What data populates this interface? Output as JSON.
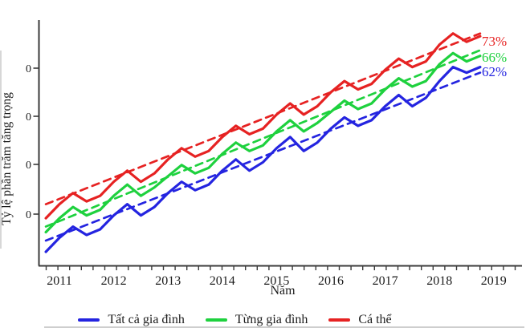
{
  "figure": {
    "title": "",
    "x_axis_title": "Năm",
    "y_axis_title": "Tỷ lệ phần trăm tăng trọng"
  },
  "legend": [
    {
      "label": "Tất cả gia đình",
      "color": "#2424e0"
    },
    {
      "label": "Từng gia đình",
      "color": "#1ed13e"
    },
    {
      "label": "Cá thể",
      "color": "#e62222"
    }
  ],
  "chart_data": {
    "type": "line",
    "title": "",
    "xlabel": "Năm",
    "ylabel": "Tỷ lệ phần trăm tăng trọng",
    "grid": false,
    "legend_position": "bottom",
    "x_start_year": 2010.75,
    "x_step_years": 0.25,
    "x_tick_labels": [
      "2011",
      "2012",
      "2013",
      "2014",
      "2015",
      "2016",
      "2017",
      "2018",
      "2019"
    ],
    "y_tick_labels": [
      "0",
      "0",
      "0",
      "0"
    ],
    "ylim": [
      -10,
      80
    ],
    "y_unit": "percent",
    "end_labels": [
      {
        "text": "73%",
        "series": "Cá thể",
        "color": "#e62222"
      },
      {
        "text": "66%",
        "series": "Từng gia đình",
        "color": "#1ed13e"
      },
      {
        "text": "62%",
        "series": "Tất cả gia đình",
        "color": "#2424e0"
      }
    ],
    "series": [
      {
        "name": "Tất cả gia đình",
        "color": "#2424e0",
        "style": "solid",
        "end_label": "62%",
        "values": [
          -4,
          1,
          5,
          2,
          4,
          9,
          13,
          9,
          12,
          17,
          21,
          18,
          20,
          25,
          29,
          25,
          28,
          33,
          37,
          32,
          35,
          40,
          44,
          41,
          43,
          48,
          52,
          48,
          51,
          57,
          62,
          60,
          62
        ]
      },
      {
        "name": "Từng gia đình",
        "color": "#1ed13e",
        "style": "solid",
        "end_label": "66%",
        "values": [
          3,
          8,
          12,
          9,
          11,
          16,
          20,
          16,
          19,
          23,
          27,
          24,
          26,
          31,
          35,
          32,
          34,
          39,
          43,
          39,
          42,
          46,
          50,
          47,
          49,
          54,
          58,
          55,
          57,
          63,
          67,
          64,
          66
        ]
      },
      {
        "name": "Cá thể",
        "color": "#e62222",
        "style": "solid",
        "end_label": "73%",
        "values": [
          8,
          13,
          17,
          14,
          16,
          21,
          25,
          21,
          24,
          29,
          33,
          30,
          32,
          37,
          41,
          38,
          40,
          45,
          49,
          45,
          48,
          53,
          57,
          54,
          56,
          61,
          65,
          62,
          64,
          70,
          74,
          71,
          73
        ]
      },
      {
        "name": "Tất cả gia đình (xu hướng)",
        "color": "#2424e0",
        "style": "dashed",
        "trend": {
          "start": 0,
          "end": 60
        }
      },
      {
        "name": "Từng gia đình (xu hướng)",
        "color": "#1ed13e",
        "style": "dashed",
        "trend": {
          "start": 5,
          "end": 68
        }
      },
      {
        "name": "Cá thể (xu hướng)",
        "color": "#e62222",
        "style": "dashed",
        "trend": {
          "start": 13,
          "end": 74
        }
      }
    ]
  }
}
